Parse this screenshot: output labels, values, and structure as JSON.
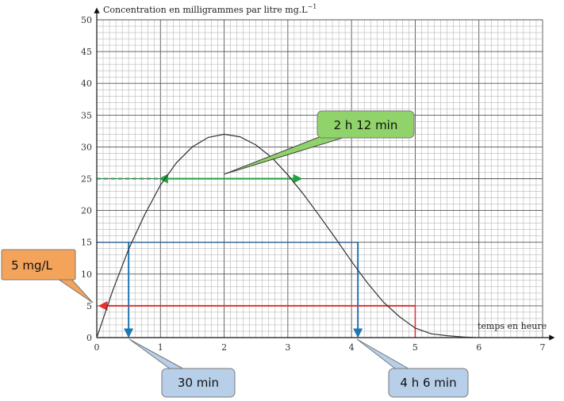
{
  "chart_data": {
    "type": "line",
    "ylabel": "Concentration en milligrammes par litre mg.L",
    "ylabel_sup": "−1",
    "xlabel": "temps en heure",
    "xlim": [
      0,
      7
    ],
    "ylim": [
      0,
      50
    ],
    "x_ticks": [
      "0",
      "1",
      "2",
      "3",
      "4",
      "5",
      "6",
      "7"
    ],
    "y_ticks": [
      "0",
      "5",
      "10",
      "15",
      "20",
      "25",
      "30",
      "35",
      "40",
      "45",
      "50"
    ],
    "grid": true,
    "series": [
      {
        "x": [
          0,
          0.25,
          0.5,
          0.75,
          1,
          1.25,
          1.5,
          1.75,
          2,
          2.25,
          2.5,
          2.75,
          3,
          3.25,
          3.5,
          3.75,
          4,
          4.25,
          4.5,
          4.75,
          5,
          5.25,
          5.5,
          5.75,
          6
        ],
        "y": [
          0,
          7.4,
          13.9,
          19.3,
          24.0,
          27.5,
          30.0,
          31.5,
          32.0,
          31.6,
          30.3,
          28.3,
          25.6,
          22.5,
          19.1,
          15.6,
          12.0,
          8.6,
          5.6,
          3.3,
          1.5,
          0.6,
          0.3,
          0.1,
          0
        ]
      }
    ],
    "annotations": [
      {
        "label": "2 h 12 min",
        "color": "#22a340",
        "from_x": 1.0,
        "to_x": 3.2,
        "at_y": 25,
        "dashed_from_x": 0
      },
      {
        "label": "30 min",
        "color": "#2076b4",
        "x": 0.5,
        "from_y": 15
      },
      {
        "label": "4 h 6 min",
        "color": "#2076b4",
        "x": 4.1,
        "from_y": 15
      },
      {
        "label": "5 mg/L",
        "color": "#e53030",
        "from_x": 5,
        "to_x": 0,
        "at_y": 5
      }
    ],
    "callout_colors": {
      "green": "#8fd36a",
      "blue": "#b8cfe9",
      "orange": "#f4a35a"
    }
  }
}
